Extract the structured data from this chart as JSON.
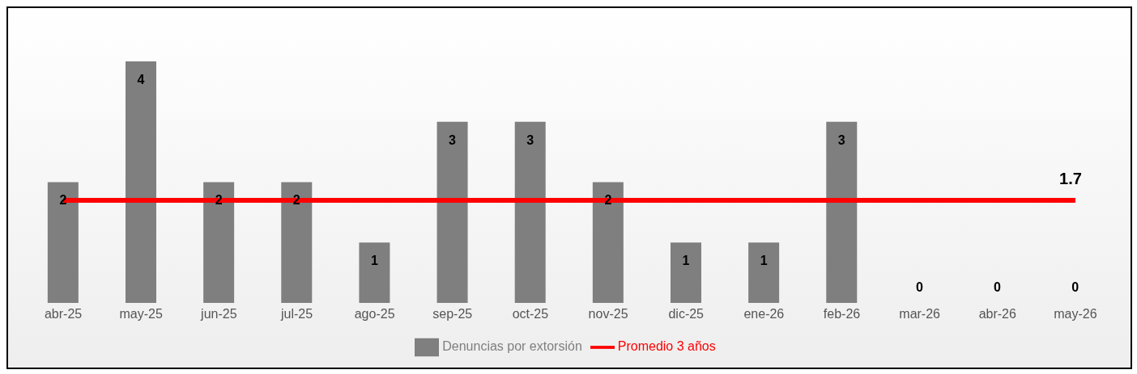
{
  "chart_data": {
    "type": "bar",
    "categories": [
      "abr-25",
      "may-25",
      "jun-25",
      "jul-25",
      "ago-25",
      "sep-25",
      "oct-25",
      "nov-25",
      "dic-25",
      "ene-26",
      "feb-26",
      "mar-26",
      "abr-26",
      "may-26"
    ],
    "series": [
      {
        "name": "Denuncias por extorsión",
        "color": "#7f7f7f",
        "values": [
          2,
          4,
          2,
          2,
          1,
          3,
          3,
          2,
          1,
          1,
          3,
          0,
          0,
          0
        ],
        "value_labels": [
          "2",
          "4",
          "2",
          "2",
          "1",
          "3",
          "3",
          "2",
          "1",
          "1",
          "3",
          "0",
          "0",
          "0"
        ]
      },
      {
        "name": "Promedio 3 años",
        "type": "line",
        "color": "#ff0000",
        "values": [
          1.7,
          1.7,
          1.7,
          1.7,
          1.7,
          1.7,
          1.7,
          1.7,
          1.7,
          1.7,
          1.7,
          1.7,
          1.7,
          1.7
        ],
        "value_labels": [
          null,
          null,
          null,
          null,
          null,
          null,
          null,
          null,
          null,
          null,
          null,
          null,
          null,
          "1.7"
        ]
      }
    ],
    "grid": false,
    "legend": "bottom",
    "marker": "none"
  }
}
